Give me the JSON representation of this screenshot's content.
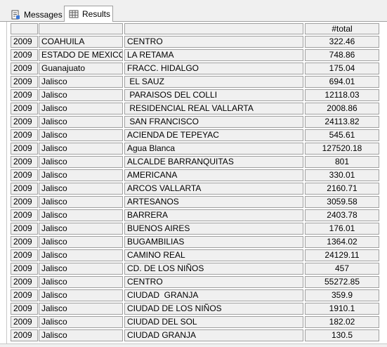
{
  "tabs": [
    {
      "label": "Messages",
      "icon": "messages-icon"
    },
    {
      "label": "Results",
      "icon": "grid-icon"
    }
  ],
  "columns": [
    "",
    "",
    "",
    "#total"
  ],
  "rows": [
    [
      "2009",
      "COAHUILA",
      "CENTRO",
      "322.46"
    ],
    [
      "2009",
      "ESTADO DE MEXICO",
      "LA RETAMA",
      "748.86"
    ],
    [
      "2009",
      "Guanajuato",
      "FRACC. HIDALGO",
      "175.04"
    ],
    [
      "2009",
      "Jalisco",
      " EL SAUZ",
      "694.01"
    ],
    [
      "2009",
      "Jalisco",
      " PARAISOS DEL COLLI",
      "12118.03"
    ],
    [
      "2009",
      "Jalisco",
      " RESIDENCIAL REAL VALLARTA",
      "2008.86"
    ],
    [
      "2009",
      "Jalisco",
      " SAN FRANCISCO",
      "24113.82"
    ],
    [
      "2009",
      "Jalisco",
      "ACIENDA DE TEPEYAC",
      "545.61"
    ],
    [
      "2009",
      "Jalisco",
      "Agua Blanca",
      "127520.18"
    ],
    [
      "2009",
      "Jalisco",
      "ALCALDE BARRANQUITAS",
      "801"
    ],
    [
      "2009",
      "Jalisco",
      "AMERICANA",
      "330.01"
    ],
    [
      "2009",
      "Jalisco",
      "ARCOS VALLARTA",
      "2160.71"
    ],
    [
      "2009",
      "Jalisco",
      "ARTESANOS",
      "3059.58"
    ],
    [
      "2009",
      "Jalisco",
      "BARRERA",
      "2403.78"
    ],
    [
      "2009",
      "Jalisco",
      "BUENOS AIRES",
      "176.01"
    ],
    [
      "2009",
      "Jalisco",
      "BUGAMBILIAS",
      "1364.02"
    ],
    [
      "2009",
      "Jalisco",
      "CAMINO REAL",
      "24129.11"
    ],
    [
      "2009",
      "Jalisco",
      "CD. DE LOS NIÑOS",
      "457"
    ],
    [
      "2009",
      "Jalisco",
      "CENTRO",
      "55272.85"
    ],
    [
      "2009",
      "Jalisco",
      "CIUDAD  GRANJA",
      "359.9"
    ],
    [
      "2009",
      "Jalisco",
      "CIUDAD DE LOS NIÑOS",
      "1910.1"
    ],
    [
      "2009",
      "Jalisco",
      "CIUDAD DEL SOL",
      "182.02"
    ],
    [
      "2009",
      "Jalisco",
      "CIUDAD GRANJA",
      "130.5"
    ]
  ]
}
